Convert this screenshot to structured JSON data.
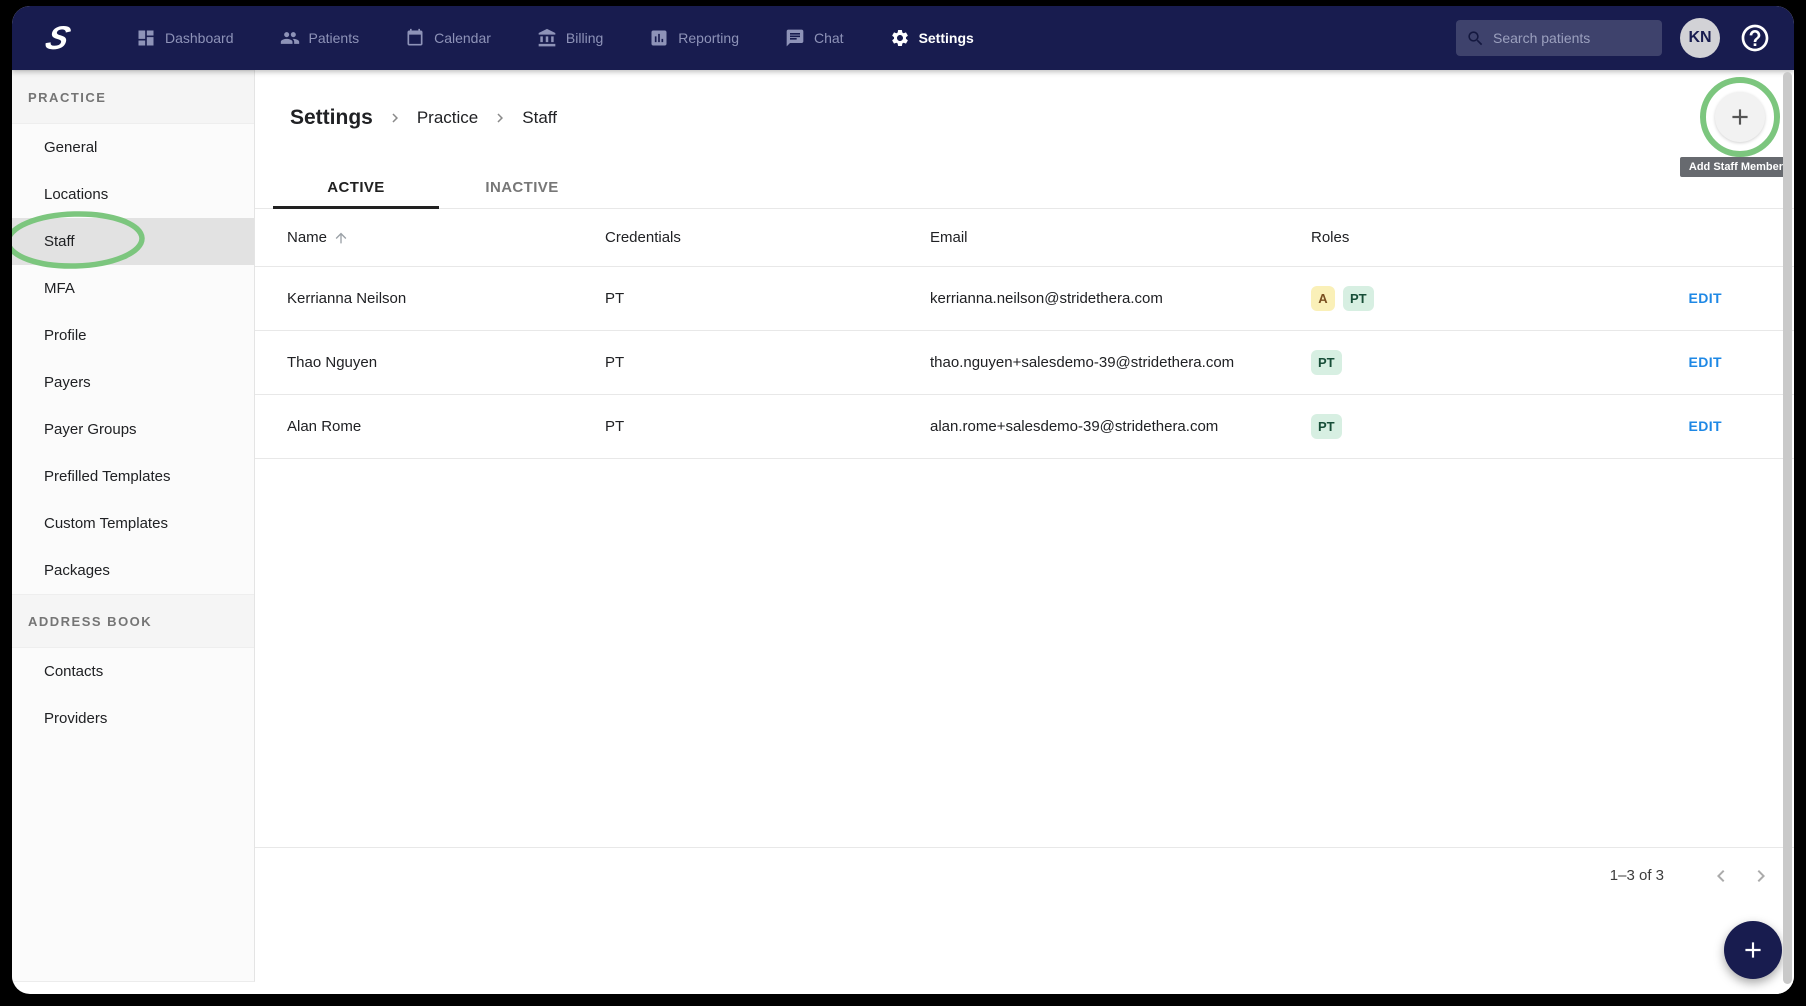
{
  "colors": {
    "navy": "#181C4F",
    "nav_inactive": "#8E93B8",
    "green_annotation": "#7CC67E",
    "edit_blue": "#1E88E5",
    "badge_admin_bg": "#FAF0B8",
    "badge_admin_text": "#7A4F21",
    "badge_pt_bg": "#D7EFE2",
    "badge_pt_text": "#174E38",
    "selected_item_bg": "#E2E2E2",
    "tooltip_bg": "#5F6368"
  },
  "topnav": {
    "logo_glyph": "S",
    "items": [
      {
        "label": "Dashboard",
        "icon": "dashboard",
        "active": false
      },
      {
        "label": "Patients",
        "icon": "patients",
        "active": false
      },
      {
        "label": "Calendar",
        "icon": "calendar",
        "active": false
      },
      {
        "label": "Billing",
        "icon": "billing",
        "active": false
      },
      {
        "label": "Reporting",
        "icon": "reporting",
        "active": false
      },
      {
        "label": "Chat",
        "icon": "chat",
        "active": false
      },
      {
        "label": "Settings",
        "icon": "settings",
        "active": true
      }
    ],
    "search_placeholder": "Search patients",
    "avatar_initials": "KN"
  },
  "sidebar": {
    "sections": [
      {
        "header": "PRACTICE",
        "items": [
          {
            "label": "General",
            "selected": false
          },
          {
            "label": "Locations",
            "selected": false
          },
          {
            "label": "Staff",
            "selected": true
          },
          {
            "label": "MFA",
            "selected": false
          },
          {
            "label": "Profile",
            "selected": false
          },
          {
            "label": "Payers",
            "selected": false
          },
          {
            "label": "Payer Groups",
            "selected": false
          },
          {
            "label": "Prefilled Templates",
            "selected": false
          },
          {
            "label": "Custom Templates",
            "selected": false
          },
          {
            "label": "Packages",
            "selected": false
          }
        ]
      },
      {
        "header": "ADDRESS BOOK",
        "items": [
          {
            "label": "Contacts",
            "selected": false
          },
          {
            "label": "Providers",
            "selected": false
          }
        ]
      }
    ]
  },
  "page": {
    "breadcrumb": [
      "Settings",
      "Practice",
      "Staff"
    ],
    "tabs": [
      {
        "label": "ACTIVE",
        "active": true
      },
      {
        "label": "INACTIVE",
        "active": false
      }
    ],
    "add_tooltip": "Add Staff Member"
  },
  "table": {
    "columns": [
      {
        "label": "Name",
        "sorted": true
      },
      {
        "label": "Credentials",
        "sorted": false
      },
      {
        "label": "Email",
        "sorted": false
      },
      {
        "label": "Roles",
        "sorted": false
      }
    ],
    "rows": [
      {
        "name": "Kerrianna Neilson",
        "credentials": "PT",
        "email": "kerrianna.neilson@stridethera.com",
        "roles": [
          {
            "label": "A",
            "type": "admin"
          },
          {
            "label": "PT",
            "type": "pt"
          }
        ],
        "action": "EDIT"
      },
      {
        "name": "Thao Nguyen",
        "credentials": "PT",
        "email": "thao.nguyen+salesdemo-39@stridethera.com",
        "roles": [
          {
            "label": "PT",
            "type": "pt"
          }
        ],
        "action": "EDIT"
      },
      {
        "name": "Alan Rome",
        "credentials": "PT",
        "email": "alan.rome+salesdemo-39@stridethera.com",
        "roles": [
          {
            "label": "PT",
            "type": "pt"
          }
        ],
        "action": "EDIT"
      }
    ]
  },
  "pagination": {
    "label": "1–3 of 3"
  }
}
